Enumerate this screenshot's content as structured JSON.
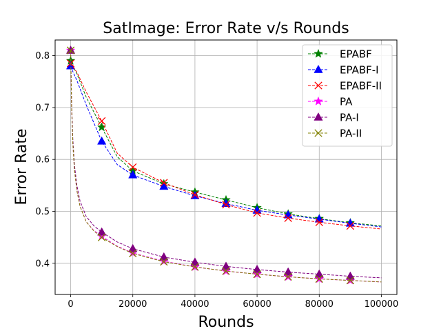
{
  "chart_data": {
    "type": "line",
    "title": "SatImage: Error Rate v/s Rounds",
    "xlabel": "Rounds",
    "ylabel": "Error Rate",
    "xlim": [
      -5000,
      105000
    ],
    "ylim": [
      0.34,
      0.83
    ],
    "xticks": [
      0,
      20000,
      40000,
      60000,
      80000,
      100000
    ],
    "xtick_labels": [
      "0",
      "20000",
      "40000",
      "60000",
      "80000",
      "100000"
    ],
    "yticks": [
      0.4,
      0.5,
      0.6,
      0.7,
      0.8
    ],
    "ytick_labels": [
      "0.4",
      "0.5",
      "0.6",
      "0.7",
      "0.8"
    ],
    "grid": true,
    "legend_position": "top-right",
    "marker_x": [
      0,
      10000,
      20000,
      30000,
      40000,
      50000,
      60000,
      70000,
      80000,
      90000
    ],
    "series": [
      {
        "name": "EPABF",
        "color": "#008000",
        "marker": "star",
        "line": "dashed",
        "x": [
          0,
          500,
          2000,
          5000,
          10000,
          15000,
          20000,
          30000,
          40000,
          50000,
          60000,
          70000,
          80000,
          90000,
          100000
        ],
        "y": [
          0.79,
          0.782,
          0.765,
          0.72,
          0.662,
          0.605,
          0.578,
          0.553,
          0.537,
          0.522,
          0.507,
          0.495,
          0.486,
          0.478,
          0.472
        ]
      },
      {
        "name": "EPABF-I",
        "color": "#0000ff",
        "marker": "triangle",
        "line": "dashed",
        "x": [
          0,
          500,
          2000,
          5000,
          10000,
          15000,
          20000,
          30000,
          40000,
          50000,
          60000,
          70000,
          80000,
          90000,
          100000
        ],
        "y": [
          0.78,
          0.772,
          0.752,
          0.705,
          0.635,
          0.59,
          0.57,
          0.548,
          0.53,
          0.515,
          0.502,
          0.493,
          0.485,
          0.477,
          0.47
        ]
      },
      {
        "name": "EPABF-II",
        "color": "#ff0000",
        "marker": "x",
        "line": "dashed",
        "x": [
          0,
          500,
          2000,
          5000,
          10000,
          15000,
          20000,
          30000,
          40000,
          50000,
          60000,
          70000,
          80000,
          90000,
          100000
        ],
        "y": [
          0.785,
          0.78,
          0.768,
          0.73,
          0.674,
          0.612,
          0.585,
          0.555,
          0.532,
          0.513,
          0.497,
          0.487,
          0.479,
          0.472,
          0.466
        ]
      },
      {
        "name": "PA",
        "color": "#ff00ff",
        "marker": "star",
        "line": "dashed",
        "x": [
          0,
          300,
          700,
          1200,
          2000,
          3000,
          5000,
          7500,
          10000,
          15000,
          20000,
          30000,
          40000,
          50000,
          60000,
          70000,
          80000,
          90000,
          100000
        ],
        "y": [
          0.81,
          0.7,
          0.63,
          0.58,
          0.54,
          0.51,
          0.48,
          0.463,
          0.452,
          0.433,
          0.42,
          0.404,
          0.393,
          0.385,
          0.379,
          0.374,
          0.37,
          0.367,
          0.364
        ]
      },
      {
        "name": "PA-I",
        "color": "#800080",
        "marker": "triangle",
        "line": "dashed",
        "x": [
          0,
          300,
          700,
          1200,
          2000,
          3000,
          5000,
          7500,
          10000,
          15000,
          20000,
          30000,
          40000,
          50000,
          60000,
          70000,
          80000,
          90000,
          100000
        ],
        "y": [
          0.81,
          0.71,
          0.64,
          0.59,
          0.55,
          0.52,
          0.49,
          0.472,
          0.46,
          0.441,
          0.428,
          0.412,
          0.402,
          0.394,
          0.388,
          0.383,
          0.379,
          0.375,
          0.372
        ]
      },
      {
        "name": "PA-II",
        "color": "#808000",
        "marker": "x",
        "line": "dashed",
        "x": [
          0,
          300,
          700,
          1200,
          2000,
          3000,
          5000,
          7500,
          10000,
          15000,
          20000,
          30000,
          40000,
          50000,
          60000,
          70000,
          80000,
          90000,
          100000
        ],
        "y": [
          0.81,
          0.7,
          0.63,
          0.58,
          0.54,
          0.51,
          0.48,
          0.462,
          0.45,
          0.432,
          0.419,
          0.403,
          0.393,
          0.385,
          0.379,
          0.374,
          0.37,
          0.367,
          0.364
        ]
      }
    ]
  }
}
